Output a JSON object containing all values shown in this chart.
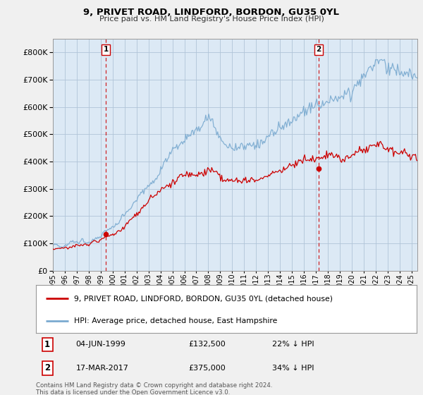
{
  "title": "9, PRIVET ROAD, LINDFORD, BORDON, GU35 0YL",
  "subtitle": "Price paid vs. HM Land Registry's House Price Index (HPI)",
  "ylim": [
    0,
    850000
  ],
  "xlim_start": 1995.0,
  "xlim_end": 2025.5,
  "sale1_date": 1999.42,
  "sale1_price": 132500,
  "sale2_date": 2017.21,
  "sale2_price": 375000,
  "sale1_text": "04-JUN-1999",
  "sale1_amount": "£132,500",
  "sale1_pct": "22% ↓ HPI",
  "sale2_text": "17-MAR-2017",
  "sale2_amount": "£375,000",
  "sale2_pct": "34% ↓ HPI",
  "legend_line1": "9, PRIVET ROAD, LINDFORD, BORDON, GU35 0YL (detached house)",
  "legend_line2": "HPI: Average price, detached house, East Hampshire",
  "footer": "Contains HM Land Registry data © Crown copyright and database right 2024.\nThis data is licensed under the Open Government Licence v3.0.",
  "hpi_color": "#7aaad0",
  "price_color": "#cc0000",
  "vline_color": "#cc0000",
  "bg_color": "#f0f0f0",
  "plot_bg": "#dce9f5",
  "grid_color": "#b0c4d8"
}
